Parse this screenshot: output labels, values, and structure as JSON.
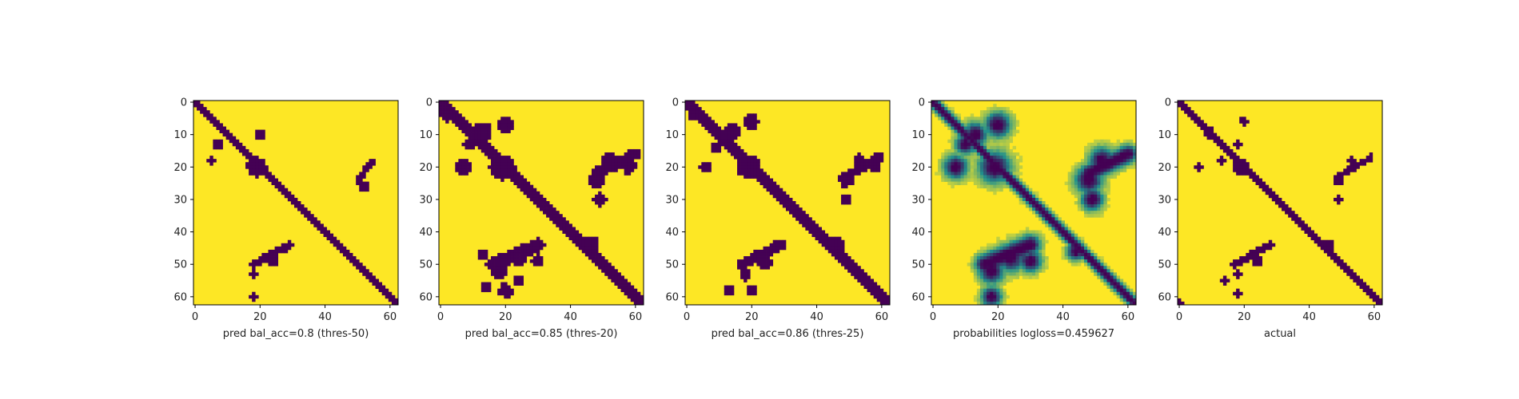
{
  "figure": {
    "background": "#ffffff"
  },
  "colors": {
    "low": "#440154",
    "mid": "#21918c",
    "high": "#fde725",
    "axis": "#000000"
  },
  "chart_data": [
    {
      "type": "heatmap",
      "xlabel": "pred bal_acc=0.8 (thres-50)",
      "matrix_size": 63,
      "xlim": [
        0,
        63
      ],
      "ylim": [
        0,
        63
      ],
      "xticks": [
        0,
        20,
        40,
        60
      ],
      "yticks": [
        0,
        10,
        20,
        30,
        40,
        50,
        60
      ],
      "values_kind": "binary",
      "diagonal_width": 1.5,
      "blobs": [
        [
          20,
          19,
          2.6
        ],
        [
          13,
          7,
          1.4
        ],
        [
          10,
          20,
          1.2
        ],
        [
          18,
          5,
          1.0
        ],
        [
          49,
          24,
          1.3
        ],
        [
          26,
          52,
          1.3
        ],
        [
          45,
          28,
          1.0
        ],
        [
          53,
          18,
          1.0
        ],
        [
          60,
          18,
          0.9
        ]
      ],
      "bands": [
        [
          50,
          18,
          44,
          29,
          1.0
        ],
        [
          24,
          50,
          18,
          55,
          0.8
        ]
      ]
    },
    {
      "type": "heatmap",
      "xlabel": "pred bal_acc=0.85 (thres-20)",
      "matrix_size": 63,
      "xlim": [
        0,
        63
      ],
      "ylim": [
        0,
        63
      ],
      "xticks": [
        0,
        20,
        40,
        60
      ],
      "yticks": [
        0,
        10,
        20,
        30,
        40,
        50,
        60
      ],
      "values_kind": "binary",
      "diagonal_width": 2.2,
      "blobs": [
        [
          20,
          19,
          3.2
        ],
        [
          7,
          20,
          2.0
        ],
        [
          20,
          7,
          2.0
        ],
        [
          9,
          13,
          2.4
        ],
        [
          13,
          9,
          1.6
        ],
        [
          4,
          2,
          1.8
        ],
        [
          24,
          48,
          2.0
        ],
        [
          48,
          24,
          2.0
        ],
        [
          18,
          52,
          2.0
        ],
        [
          52,
          18,
          2.0
        ],
        [
          30,
          49,
          1.6
        ],
        [
          49,
          30,
          1.6
        ],
        [
          20,
          58,
          1.8
        ],
        [
          58,
          20,
          1.8
        ],
        [
          44,
          46,
          2.2
        ],
        [
          57,
          14,
          1.6
        ],
        [
          55,
          24,
          1.2
        ],
        [
          47,
          13,
          1.2
        ]
      ],
      "bands": [
        [
          50,
          16,
          44,
          30,
          1.6
        ],
        [
          22,
          48,
          16,
          60,
          1.4
        ]
      ]
    },
    {
      "type": "heatmap",
      "xlabel": "pred bal_acc=0.86 (thres-25)",
      "matrix_size": 63,
      "xlim": [
        0,
        63
      ],
      "ylim": [
        0,
        63
      ],
      "xticks": [
        0,
        20,
        40,
        60
      ],
      "yticks": [
        0,
        10,
        20,
        30,
        40,
        50,
        60
      ],
      "values_kind": "binary",
      "diagonal_width": 2.0,
      "blobs": [
        [
          20,
          19,
          3.0
        ],
        [
          6,
          20,
          1.8
        ],
        [
          20,
          6,
          1.6
        ],
        [
          9,
          14,
          2.0
        ],
        [
          14,
          9,
          1.4
        ],
        [
          4,
          2,
          1.5
        ],
        [
          24,
          49,
          1.8
        ],
        [
          49,
          24,
          1.8
        ],
        [
          18,
          53,
          1.6
        ],
        [
          53,
          18,
          1.6
        ],
        [
          30,
          49,
          1.3
        ],
        [
          20,
          58,
          1.5
        ],
        [
          58,
          20,
          1.4
        ],
        [
          44,
          46,
          2.0
        ],
        [
          58,
          13,
          1.4
        ]
      ],
      "bands": [
        [
          50,
          17,
          44,
          29,
          1.4
        ],
        [
          23,
          49,
          17,
          59,
          1.2
        ]
      ]
    },
    {
      "type": "heatmap",
      "xlabel": "probabilities logloss=0.459627",
      "matrix_size": 63,
      "xlim": [
        0,
        63
      ],
      "ylim": [
        0,
        63
      ],
      "xticks": [
        0,
        20,
        40,
        60
      ],
      "yticks": [
        0,
        10,
        20,
        30,
        40,
        50,
        60
      ],
      "values_kind": "continuous",
      "diagonal_width": 1.6,
      "blobs": [
        [
          20,
          19,
          3.5
        ],
        [
          7,
          20,
          2.8
        ],
        [
          20,
          7,
          2.6
        ],
        [
          10,
          13,
          2.6
        ],
        [
          13,
          10,
          2.2
        ],
        [
          24,
          48,
          3.0
        ],
        [
          48,
          24,
          3.0
        ],
        [
          18,
          52,
          2.8
        ],
        [
          52,
          18,
          2.8
        ],
        [
          30,
          49,
          2.4
        ],
        [
          49,
          30,
          2.4
        ],
        [
          60,
          18,
          2.2
        ],
        [
          46,
          44,
          2.0
        ]
      ],
      "bands": [
        [
          50,
          16,
          44,
          30,
          2.2
        ],
        [
          22,
          48,
          16,
          60,
          2.0
        ]
      ]
    },
    {
      "type": "heatmap",
      "xlabel": "actual",
      "matrix_size": 63,
      "xlim": [
        0,
        63
      ],
      "ylim": [
        0,
        63
      ],
      "xticks": [
        0,
        20,
        40,
        60
      ],
      "yticks": [
        0,
        10,
        20,
        30,
        40,
        50,
        60
      ],
      "values_kind": "binary",
      "diagonal_width": 1.2,
      "blobs": [
        [
          20,
          19,
          2.0
        ],
        [
          9,
          9,
          1.6
        ],
        [
          6,
          20,
          1.1
        ],
        [
          20,
          6,
          1.0
        ],
        [
          13,
          18,
          1.0
        ],
        [
          18,
          13,
          0.9
        ],
        [
          24,
          49,
          1.2
        ],
        [
          49,
          24,
          1.2
        ],
        [
          18,
          53,
          1.0
        ],
        [
          53,
          18,
          1.0
        ],
        [
          30,
          49,
          0.9
        ],
        [
          59,
          18,
          1.0
        ],
        [
          44,
          46,
          1.2
        ],
        [
          55,
          14,
          1.0
        ],
        [
          62,
          0,
          1.0
        ]
      ],
      "bands": [
        [
          50,
          17,
          44,
          28,
          0.9
        ],
        [
          23,
          49,
          17,
          59,
          0.8
        ]
      ]
    }
  ]
}
